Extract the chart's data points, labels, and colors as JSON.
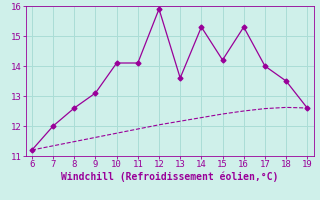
{
  "xlabel": "Windchill (Refroidissement éolien,°C)",
  "x_main": [
    6,
    7,
    8,
    9,
    10,
    11,
    12,
    13,
    14,
    15,
    16,
    17,
    18,
    19
  ],
  "y_main": [
    11.2,
    12.0,
    12.6,
    13.1,
    14.1,
    14.1,
    15.9,
    13.6,
    15.3,
    14.2,
    15.3,
    14.0,
    13.5,
    12.6
  ],
  "x_trend": [
    6,
    7,
    8,
    9,
    10,
    11,
    12,
    13,
    14,
    15,
    16,
    17,
    18,
    19
  ],
  "y_trend": [
    11.2,
    11.34,
    11.48,
    11.62,
    11.76,
    11.9,
    12.04,
    12.16,
    12.28,
    12.4,
    12.5,
    12.58,
    12.62,
    12.6
  ],
  "line_color": "#990099",
  "marker": "D",
  "marker_size": 2.5,
  "background_color": "#cff0ea",
  "grid_color": "#aaddd6",
  "xlim": [
    5.7,
    19.3
  ],
  "ylim": [
    11,
    16
  ],
  "xticks": [
    6,
    7,
    8,
    9,
    10,
    11,
    12,
    13,
    14,
    15,
    16,
    17,
    18,
    19
  ],
  "yticks": [
    11,
    12,
    13,
    14,
    15,
    16
  ],
  "tick_color": "#990099",
  "tick_fontsize": 6.5,
  "xlabel_fontsize": 7
}
